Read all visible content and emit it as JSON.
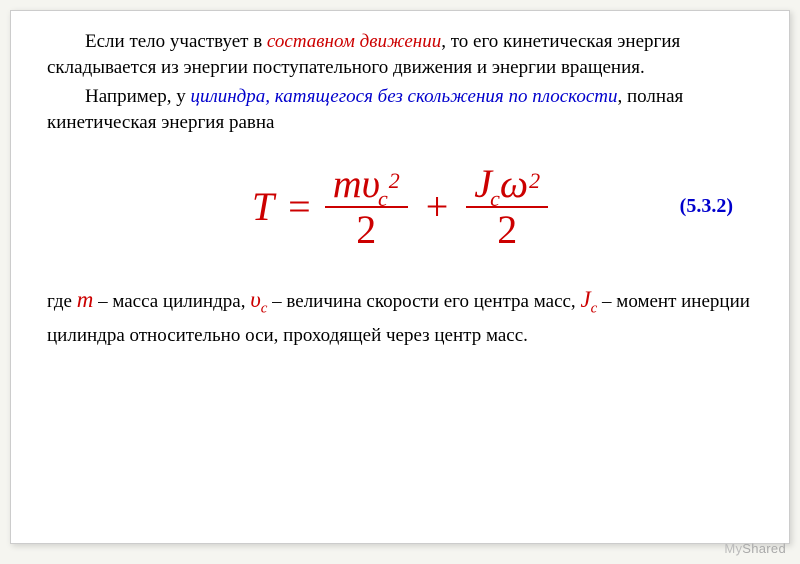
{
  "p1": {
    "pre": "Если тело участвует в ",
    "em": "составном движении",
    "post": ", то его кинетическая энергия складывается из энергии поступательного движения и энергии вращения."
  },
  "p2": {
    "pre": "Например, у ",
    "cyl": "цилиндра,  катящегося  без  скольжения по плоскости",
    "post": ", полная кинетическая энергия равна"
  },
  "formula": {
    "T": "T",
    "eq": "=",
    "m": "m",
    "v": "υ",
    "c": "c",
    "two_a": "2",
    "den1": "2",
    "plus": "+",
    "J": "J",
    "omega": "ω",
    "two_b": "2",
    "den2": "2",
    "number": "(5.3.2)"
  },
  "desc": {
    "where": "где ",
    "m": "m",
    "m_txt": " – масса цилиндра, ",
    "v": "υ",
    "v_sub": "c",
    "v_txt": " – величина скорости его центра масс, ",
    "J": "J",
    "J_sub": "c",
    "J_txt": " – момент инерции цилиндра относительно оси, проходящей через центр масс."
  },
  "watermark": {
    "my": "My",
    "shared": "Shared"
  },
  "colors": {
    "red": "#cc0000",
    "blue": "#0000cc",
    "bg": "#ffffff",
    "page_bg": "#f5f5f0"
  }
}
